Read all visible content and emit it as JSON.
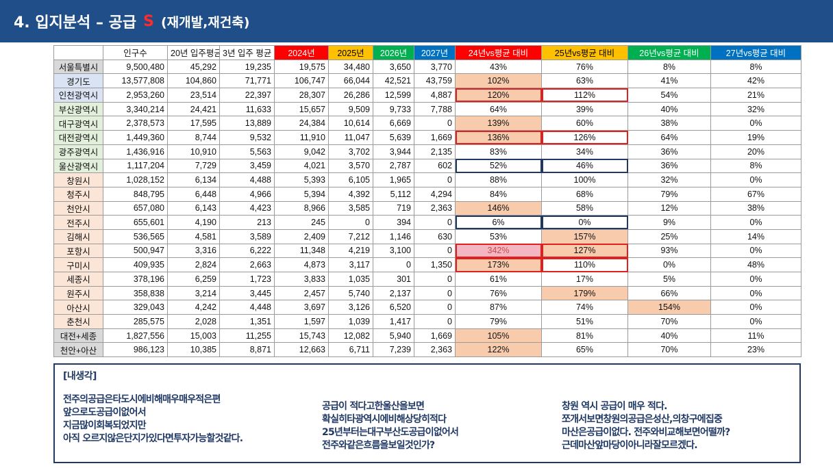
{
  "title": {
    "main": "4. 입지분석 – 공급",
    "mark": "S",
    "sub": "(재개발,재건축)"
  },
  "table": {
    "headers": [
      "",
      "인구수",
      "20년 입주평균",
      "3년 입주 평균",
      "2024년",
      "2025년",
      "2026년",
      "2027년",
      "24년vs평균 대비",
      "25년vs평균 대비",
      "26년vs평균 대비",
      "27년vs평균 대비"
    ],
    "header_colors": {
      "y2024": "#ff0000",
      "y2025": "#ffc000",
      "y2026": "#00b050",
      "y2027": "#0070c0",
      "vs24": "#ff0000",
      "vs25": "#ffc000",
      "vs26": "#00b050",
      "vs27": "#0070c0"
    },
    "rows": [
      [
        "서울특별시",
        "9,500,480",
        "45,292",
        "19,235",
        "19,575",
        "34,480",
        "3,650",
        "3,770",
        "43%",
        "76%",
        "8%",
        "8%"
      ],
      [
        "경기도",
        "13,577,808",
        "104,860",
        "71,771",
        "106,747",
        "66,044",
        "42,521",
        "43,759",
        "102%",
        "63%",
        "41%",
        "42%"
      ],
      [
        "인천광역시",
        "2,953,260",
        "23,514",
        "22,397",
        "28,307",
        "26,286",
        "12,599",
        "4,887",
        "120%",
        "112%",
        "54%",
        "21%"
      ],
      [
        "부산광역시",
        "3,340,214",
        "24,421",
        "11,633",
        "15,657",
        "9,509",
        "9,733",
        "7,788",
        "64%",
        "39%",
        "40%",
        "32%"
      ],
      [
        "대구광역시",
        "2,378,573",
        "17,595",
        "13,889",
        "24,384",
        "10,614",
        "6,669",
        "0",
        "139%",
        "60%",
        "38%",
        "0%"
      ],
      [
        "대전광역시",
        "1,449,360",
        "8,744",
        "9,532",
        "11,910",
        "11,047",
        "5,639",
        "1,669",
        "136%",
        "126%",
        "64%",
        "19%"
      ],
      [
        "광주광역시",
        "1,436,916",
        "10,910",
        "5,563",
        "9,042",
        "3,702",
        "3,944",
        "2,135",
        "83%",
        "34%",
        "36%",
        "20%"
      ],
      [
        "울산광역시",
        "1,117,204",
        "7,729",
        "3,459",
        "4,021",
        "3,570",
        "2,787",
        "602",
        "52%",
        "46%",
        "36%",
        "8%"
      ],
      [
        "창원시",
        "1,028,152",
        "6,134",
        "4,488",
        "5,393",
        "6,105",
        "1,965",
        "0",
        "88%",
        "100%",
        "32%",
        "0%"
      ],
      [
        "청주시",
        "848,795",
        "6,448",
        "4,966",
        "5,394",
        "4,392",
        "5,112",
        "4,294",
        "84%",
        "68%",
        "79%",
        "67%"
      ],
      [
        "천안시",
        "657,080",
        "6,143",
        "4,423",
        "8,966",
        "3,585",
        "719",
        "2,363",
        "146%",
        "58%",
        "12%",
        "38%"
      ],
      [
        "전주시",
        "655,601",
        "4,190",
        "213",
        "245",
        "0",
        "394",
        "0",
        "6%",
        "0%",
        "9%",
        "0%"
      ],
      [
        "김해시",
        "536,565",
        "4,581",
        "3,589",
        "2,409",
        "7,212",
        "1,146",
        "630",
        "53%",
        "157%",
        "25%",
        "14%"
      ],
      [
        "포항시",
        "500,947",
        "3,316",
        "6,222",
        "11,348",
        "4,219",
        "3,100",
        "0",
        "342%",
        "127%",
        "93%",
        "0%"
      ],
      [
        "구미시",
        "409,935",
        "2,824",
        "2,663",
        "4,873",
        "3,117",
        "0",
        "1,350",
        "173%",
        "110%",
        "0%",
        "48%"
      ],
      [
        "세종시",
        "378,196",
        "6,259",
        "1,723",
        "3,833",
        "1,035",
        "301",
        "0",
        "61%",
        "17%",
        "5%",
        "0%"
      ],
      [
        "원주시",
        "358,838",
        "3,214",
        "3,445",
        "2,457",
        "5,740",
        "2,137",
        "0",
        "76%",
        "179%",
        "66%",
        "0%"
      ],
      [
        "아산시",
        "329,043",
        "4,242",
        "4,448",
        "3,697",
        "3,126",
        "6,520",
        "0",
        "87%",
        "74%",
        "154%",
        "0%"
      ],
      [
        "춘천시",
        "285,575",
        "2,028",
        "1,351",
        "1,597",
        "1,039",
        "1,417",
        "0",
        "79%",
        "51%",
        "70%",
        "0%"
      ],
      [
        "대전+세종",
        "1,827,556",
        "15,003",
        "11,255",
        "15,743",
        "12,082",
        "5,940",
        "1,669",
        "105%",
        "81%",
        "40%",
        "11%"
      ],
      [
        "천안+아산",
        "986,123",
        "10,385",
        "8,871",
        "12,663",
        "6,711",
        "7,239",
        "2,363",
        "122%",
        "65%",
        "70%",
        "23%"
      ]
    ]
  },
  "notes": {
    "heading": "[내생각]",
    "col1": [
      "전주의공급은타도시에비해매우매우적은편",
      "앞으로도공급이없어서",
      "지금많이회복되었지만",
      "아직 오르지않은단지가있다면투자가능할것같다."
    ],
    "col2": [
      "공급이 적다고한울산을보면",
      "확실히타광역시에비해상당히적다",
      "25년부터는대구부산도공급이없어서",
      "전주와같은흐름을보일것인가?"
    ],
    "col3": [
      "창원 역시 공급이 매우 적다.",
      "쪼개서보면창원의공급은성산,의창구에집중",
      "마산은공급이없다. 전주와비교해보면어떨까?",
      "근데마산앞마당이아니라잘모르겠다."
    ]
  },
  "colors": {
    "title_bg": "#1f4e89",
    "highlight": "#f8cbad",
    "highlight_pink": "#f4b6c2",
    "box_red": "#e0201f",
    "box_navy": "#1f3864"
  }
}
